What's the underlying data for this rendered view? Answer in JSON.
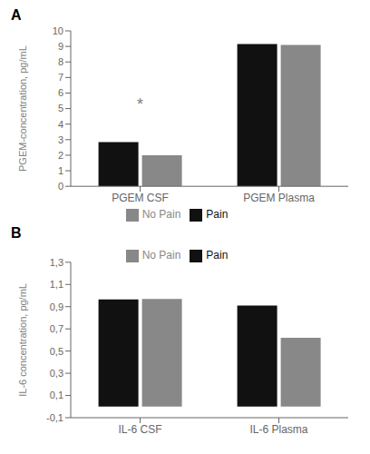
{
  "chart_data": [
    {
      "type": "bar",
      "title": "A",
      "ylabel": "PGEM-concentration, pg/mL",
      "categories": [
        "PGEM CSF",
        "PGEM Plasma"
      ],
      "series": [
        {
          "name": "Pain",
          "color": "#111111",
          "values": [
            2.85,
            9.15
          ]
        },
        {
          "name": "No Pain",
          "color": "#888888",
          "values": [
            2.0,
            9.1
          ]
        }
      ],
      "ylim": [
        0,
        10
      ],
      "yticks": [
        0,
        1,
        2,
        3,
        4,
        5,
        6,
        7,
        8,
        9,
        10
      ],
      "annotations": [
        {
          "text": "*",
          "x": "PGEM CSF",
          "y": 5.3
        }
      ],
      "grid": false,
      "legend": "bottom"
    },
    {
      "type": "bar",
      "title": "B",
      "ylabel": "IL-6 concentration, pg/mL",
      "categories": [
        "IL-6 CSF",
        "IL-6 Plasma"
      ],
      "series": [
        {
          "name": "Pain",
          "color": "#111111",
          "values": [
            0.965,
            0.91
          ]
        },
        {
          "name": "No Pain",
          "color": "#888888",
          "values": [
            0.97,
            0.62
          ]
        }
      ],
      "ylim": [
        -0.1,
        1.3
      ],
      "yticks": [
        {
          "value": -0.1,
          "label": "-0,1"
        },
        {
          "value": 0.1,
          "label": "0,1"
        },
        {
          "value": 0.3,
          "label": "0,3"
        },
        {
          "value": 0.5,
          "label": "0,5"
        },
        {
          "value": 0.7,
          "label": "0,7"
        },
        {
          "value": 0.9,
          "label": "0,9"
        },
        {
          "value": 1.1,
          "label": "1,1"
        },
        {
          "value": 1.3,
          "label": "1,3"
        }
      ],
      "grid": false,
      "legend": "top"
    }
  ]
}
